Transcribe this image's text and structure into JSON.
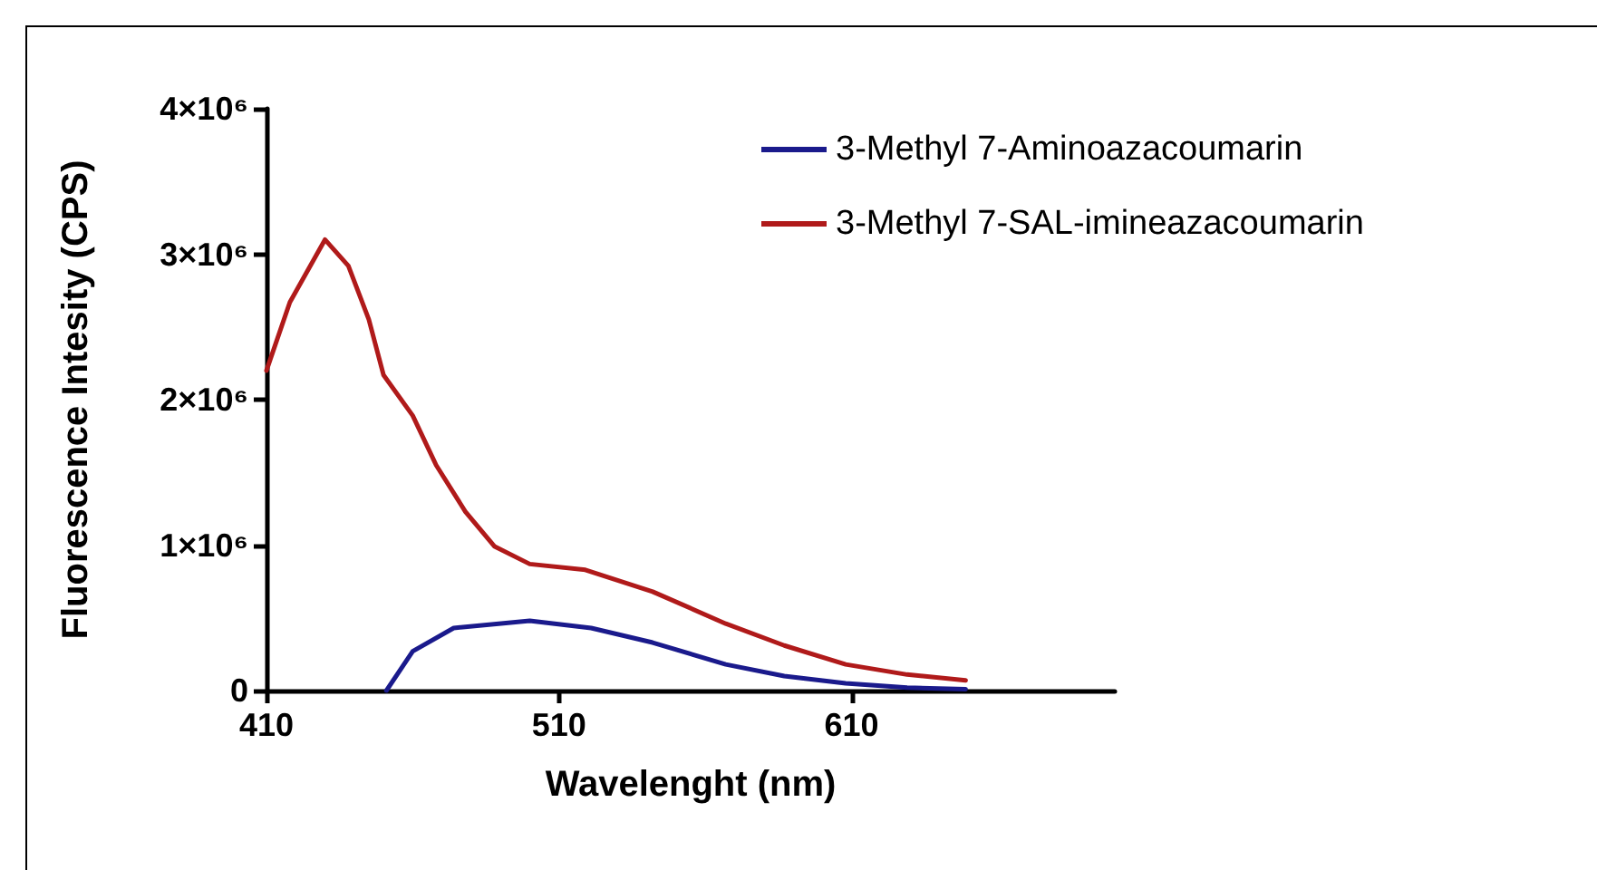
{
  "chart_data": {
    "type": "line",
    "xlabel": "Wavelenght (nm)",
    "ylabel": "Fluorescence Intesity (CPS)",
    "xlim": [
      410,
      700
    ],
    "xticks": [
      410,
      510,
      610
    ],
    "ylim": [
      0,
      4000000
    ],
    "yticks": [
      {
        "value": 0,
        "label": "0"
      },
      {
        "value": 1000000,
        "label": "1×10⁶"
      },
      {
        "value": 2000000,
        "label": "2×10⁶"
      },
      {
        "value": 3000000,
        "label": "3×10⁶"
      },
      {
        "value": 4000000,
        "label": "4×10⁶"
      }
    ],
    "grid": false,
    "legend": "top right",
    "marker": "none",
    "line_style": "solid",
    "series": [
      {
        "name": "3-Methyl 7-Aminoazacoumarin",
        "color": "#1a1a8c",
        "x": [
          451,
          460,
          474,
          500,
          521,
          542,
          567,
          587,
          608,
          629,
          649
        ],
        "values": [
          0,
          270000,
          430000,
          480000,
          430000,
          330000,
          180000,
          100000,
          50000,
          20000,
          10000
        ]
      },
      {
        "name": "3-Methyl 7-SAL-imineazacoumarin",
        "color": "#b01a1a",
        "x": [
          410,
          418,
          430,
          438,
          445,
          450,
          460,
          468,
          478,
          488,
          500,
          519,
          542,
          567,
          587,
          608,
          629,
          649
        ],
        "values": [
          2200000,
          2670000,
          3100000,
          2920000,
          2550000,
          2170000,
          1890000,
          1550000,
          1230000,
          990000,
          870000,
          830000,
          680000,
          460000,
          310000,
          180000,
          110000,
          70000
        ]
      }
    ]
  }
}
